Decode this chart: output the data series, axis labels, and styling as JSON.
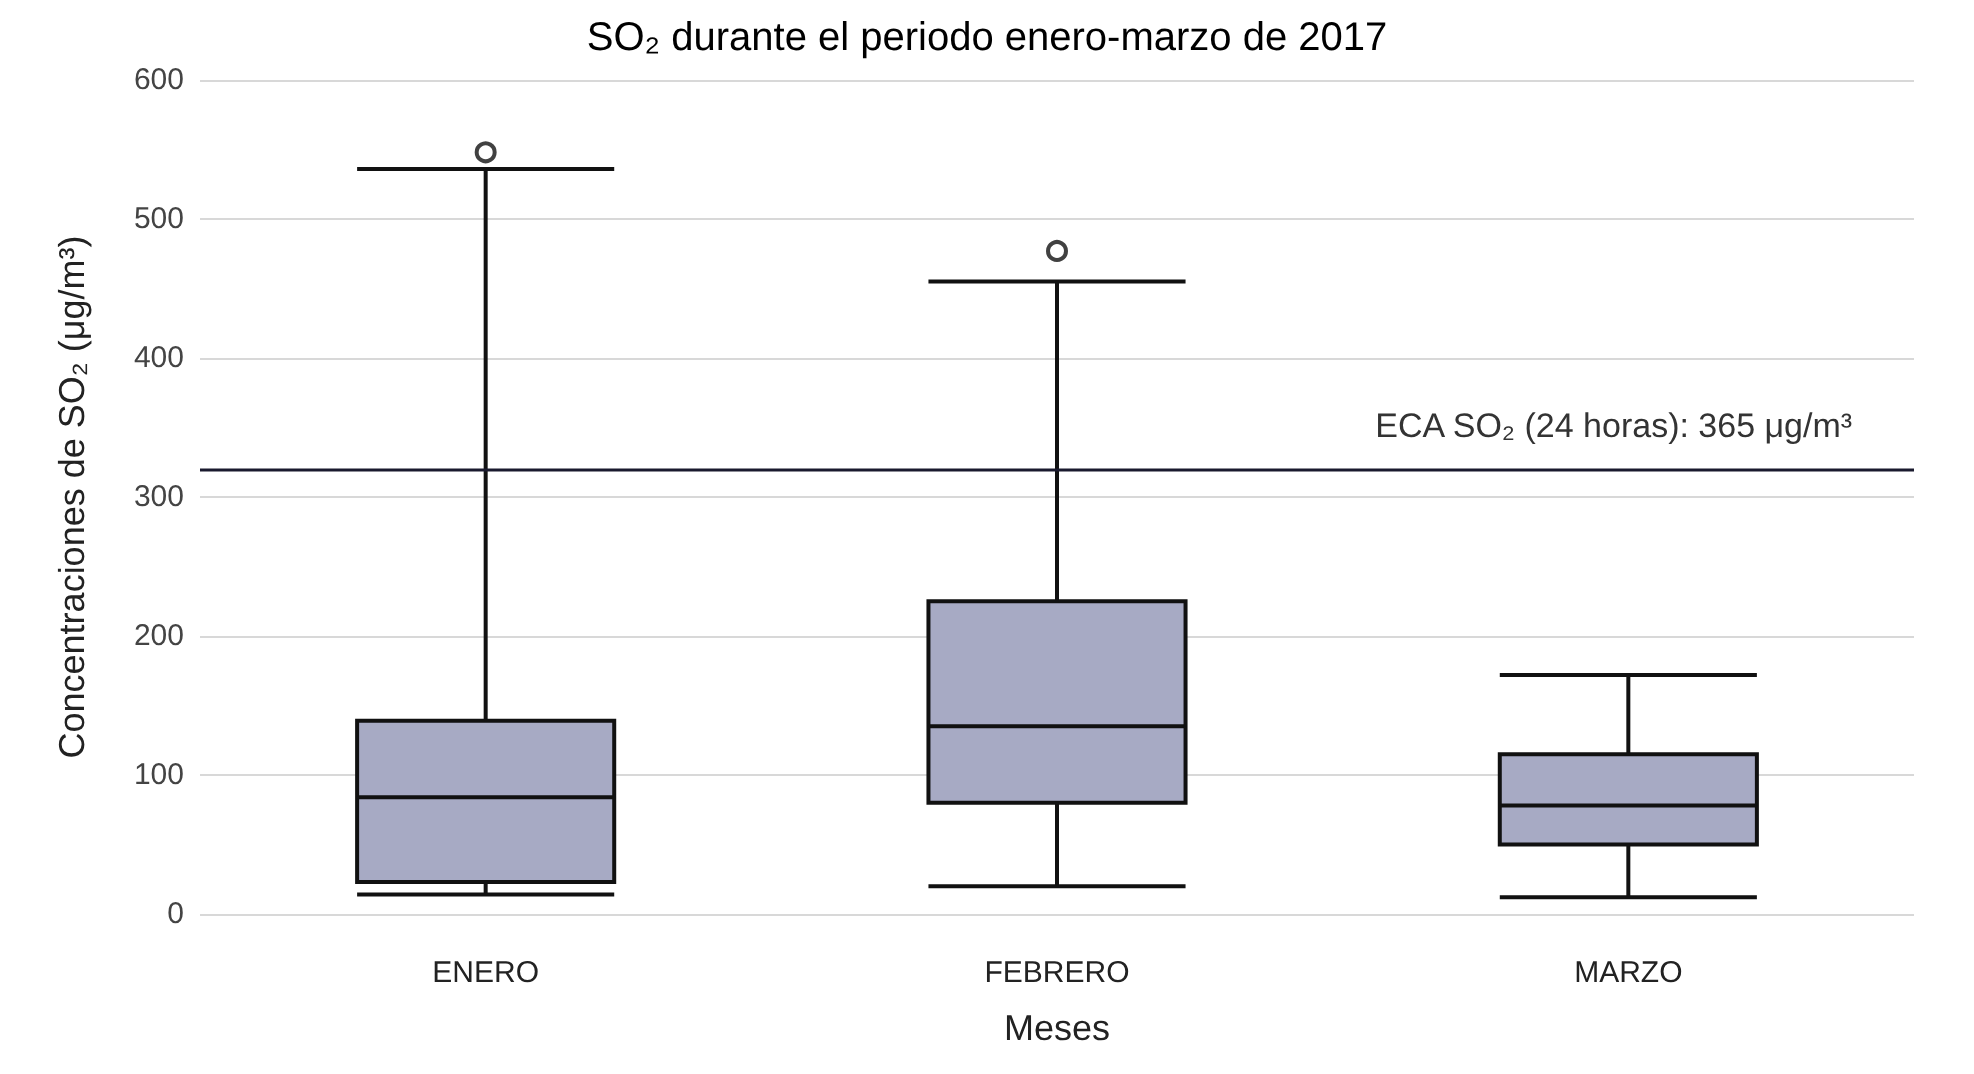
{
  "chart_data": {
    "type": "box",
    "title": "SO₂ durante el periodo enero-marzo de 2017",
    "xlabel": "Meses",
    "ylabel": "Concentraciones de SO₂ (μg/m³)",
    "categories": [
      "ENERO",
      "FEBRERO",
      "MARZO"
    ],
    "series": [
      {
        "color": "#a7aac4",
        "boxes": [
          {
            "low": 14,
            "q1": 23,
            "median": 84,
            "q3": 139,
            "high": 536,
            "outliers": [
              548
            ]
          },
          {
            "low": 20,
            "q1": 80,
            "median": 135,
            "q3": 225,
            "high": 455,
            "outliers": [
              477
            ]
          },
          {
            "low": 12,
            "q1": 50,
            "median": 78,
            "q3": 115,
            "high": 172
          }
        ]
      }
    ],
    "ylim": [
      0,
      600
    ],
    "yticks": [
      0,
      100,
      200,
      300,
      400,
      500,
      600
    ],
    "grid": "y",
    "annotations": [
      "ECA SO₂ (24 horas): 365 μg/m³"
    ],
    "ref_lines": [
      {
        "axis": "y",
        "value": 320,
        "color": "#1a1a2e"
      }
    ]
  }
}
